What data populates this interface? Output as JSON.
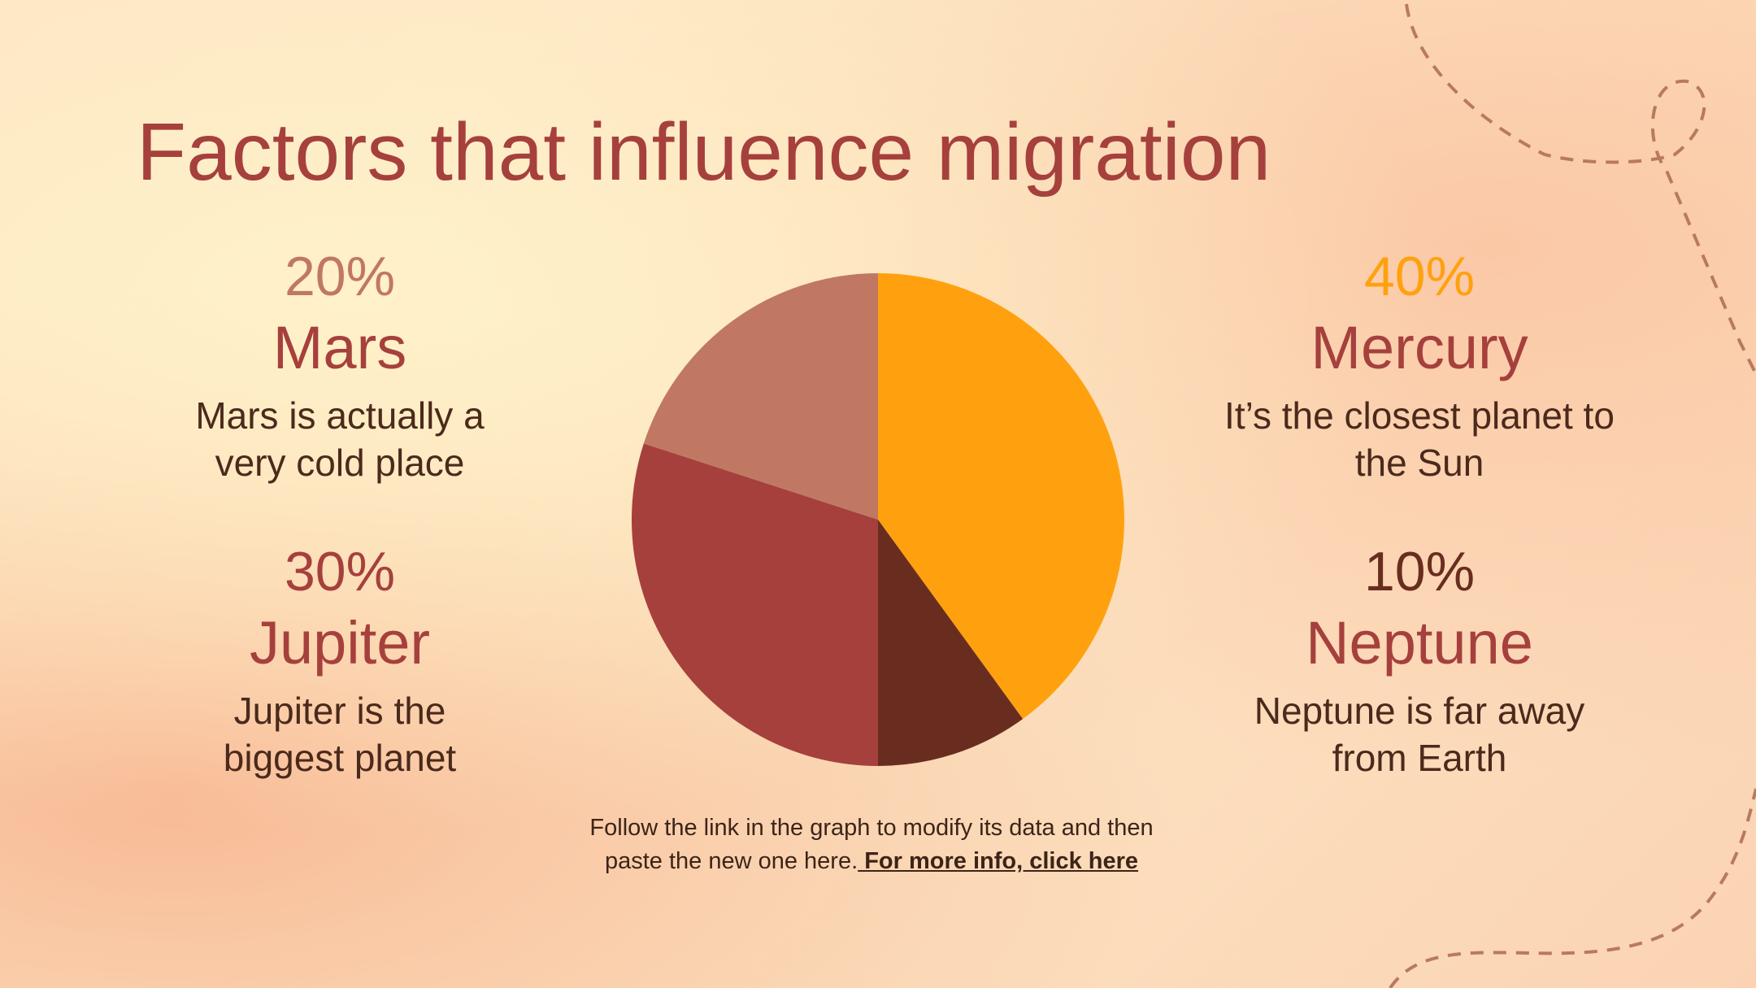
{
  "title": "Factors that influence migration",
  "chart_data": {
    "type": "pie",
    "categories": [
      "Mercury",
      "Neptune",
      "Jupiter",
      "Mars"
    ],
    "values": [
      40,
      10,
      30,
      20
    ],
    "value_labels": [
      "40%",
      "10%",
      "30%",
      "20%"
    ],
    "colors": [
      "#ffa10f",
      "#692d1f",
      "#a6403d",
      "#c07862"
    ],
    "descriptions": [
      "It’s the closest planet to the Sun",
      "Neptune is far away from Earth",
      "Jupiter is the biggest planet",
      "Mars is actually a very cold place"
    ]
  },
  "footer": {
    "text": "Follow the link in the graph to modify its data and then paste the new one here.",
    "link": " For more info, click here"
  }
}
